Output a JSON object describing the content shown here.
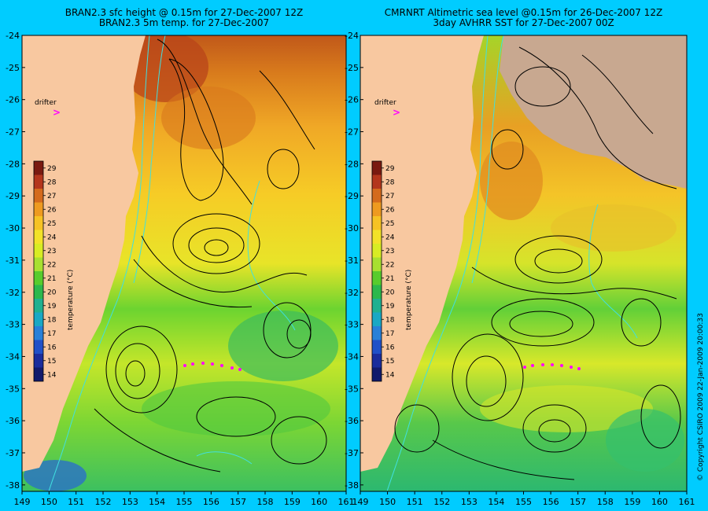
{
  "left_panel": {
    "title_line1": "BRAN2.3 sfc height @ 0.15m for 27-Dec-2007 12Z",
    "title_line2": "BRAN2.3 5m temp. for 27-Dec-2007",
    "drifter_label": "drifter",
    "colorbar_label": "temperature (°C)"
  },
  "right_panel": {
    "title_line1": "CMRNRT Altimetric sea level  @0.15m  for 26-Dec-2007 12Z",
    "title_line2": "3day AVHRR SST for 27-Dec-2007 00Z",
    "drifter_label": "drifter",
    "colorbar_label": "temperature (°C)"
  },
  "axes": {
    "lat_ticks": [
      "-24",
      "-25",
      "-26",
      "-27",
      "-28",
      "-29",
      "-30",
      "-31",
      "-32",
      "-33",
      "-34",
      "-35",
      "-36",
      "-37",
      "-38"
    ],
    "lon_ticks_left": [
      "149",
      "150",
      "151",
      "152",
      "153",
      "154",
      "155",
      "156",
      "157",
      "158",
      "159",
      "160",
      "161"
    ],
    "lon_ticks_right": [
      "149",
      "150",
      "151",
      "152",
      "153",
      "154",
      "155",
      "156",
      "157",
      "158",
      "159",
      "160",
      "161"
    ]
  },
  "colorbar": {
    "ticks": [
      "29",
      "28",
      "27",
      "26",
      "25",
      "24",
      "23",
      "22",
      "21",
      "20",
      "19",
      "18",
      "17",
      "16",
      "15",
      "14"
    ],
    "colors": [
      "#7a1a10",
      "#b4361c",
      "#d46a1c",
      "#ee9a20",
      "#f6c224",
      "#f2e228",
      "#d8ec24",
      "#a8e030",
      "#58cc2c",
      "#2cb84c",
      "#20b090",
      "#1aa8c4",
      "#2880d8",
      "#2050c8",
      "#1a2c9c",
      "#121a6c"
    ]
  },
  "copyright": "© Copyright CSIRO 2009   22-Jan-2009 20:00:33",
  "colors": {
    "background": "#00ccff",
    "land": "#f8c8a0",
    "drifter": "#ff00ff",
    "contour": "#000000",
    "bathymetry": "#40e0e0",
    "cloud": "#c8a890"
  }
}
